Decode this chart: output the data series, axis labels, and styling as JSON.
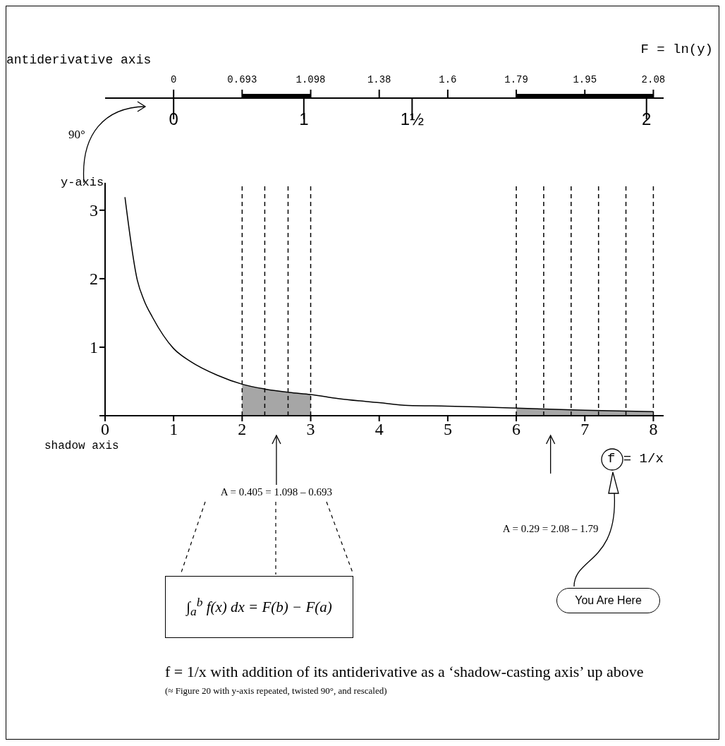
{
  "chart_data": {
    "type": "line",
    "title": "f = 1/x with addition of its antiderivative as a ‘shadow-casting axis’ up above",
    "subtitle": "(≈ Figure 20 with y-axis repeated, twisted 90°, and rescaled)",
    "xlabel": "shadow axis",
    "ylabel": "y-axis",
    "x2label": "antiderivative axis",
    "annotations": [
      "F = ln(y)",
      "90°",
      "You Are Here",
      "∫$_{a}$$^{b}$ f(x) dx = F(b) − F(a)",
      "A = 0.405 = 1.098 – 0.693",
      "A = 0.29 = 2.08 – 1.79",
      "0",
      "0.693",
      "1.098",
      "1.38",
      "1.6",
      "1.79",
      "1.95",
      "2.08",
      "0",
      "1",
      "1½",
      "2"
    ],
    "xlim": [
      0,
      8.15
    ],
    "xticks": [
      0,
      1,
      2,
      3,
      4,
      5,
      6,
      7,
      8
    ],
    "ylim": [
      0,
      3.4
    ],
    "yticks": [
      {
        "value": 0,
        "label": null
      },
      1,
      2,
      3
    ],
    "ref_lines": [
      {
        "axis": "x",
        "value": 2,
        "line_style": "dashed"
      },
      {
        "axis": "x",
        "value": 2.33,
        "line_style": "dashed"
      },
      {
        "axis": "x",
        "value": 2.67,
        "line_style": "dashed"
      },
      {
        "axis": "x",
        "value": 3,
        "line_style": "dashed"
      },
      {
        "axis": "x",
        "value": 6,
        "line_style": "dashed"
      },
      {
        "axis": "x",
        "value": 6.4,
        "line_style": "dashed"
      },
      {
        "axis": "x",
        "value": 6.8,
        "line_style": "dashed"
      },
      {
        "axis": "x",
        "value": 7.2,
        "line_style": "dashed"
      },
      {
        "axis": "x",
        "value": 7.6,
        "line_style": "dashed"
      },
      {
        "axis": "x",
        "value": 8,
        "line_style": "dashed"
      }
    ],
    "marker": "none",
    "series": [
      {
        "type": "area",
        "color": "#a6a6a6",
        "x": [
          2,
          2.33,
          2.69,
          3
        ],
        "values": [
          0.46,
          0.39,
          0.34,
          0.31
        ]
      },
      {
        "type": "area",
        "color": "#a6a6a6",
        "x": [
          6,
          7,
          8
        ],
        "values": [
          0.11,
          0.08,
          0.06
        ]
      },
      {
        "name": "f = 1/x",
        "color": "#000000",
        "x": [
          0.29,
          0.47,
          0.57,
          0.69,
          1.0,
          1.25,
          1.64,
          2.0,
          2.33,
          2.69,
          3.0,
          3.4,
          4.0,
          4.42,
          5.0,
          5.43,
          6.0,
          7.0,
          8.0
        ],
        "values": [
          3.19,
          1.98,
          1.68,
          1.44,
          0.98,
          0.79,
          0.59,
          0.46,
          0.39,
          0.34,
          0.31,
          0.25,
          0.19,
          0.15,
          0.14,
          0.13,
          0.11,
          0.08,
          0.06
        ]
      }
    ]
  }
}
